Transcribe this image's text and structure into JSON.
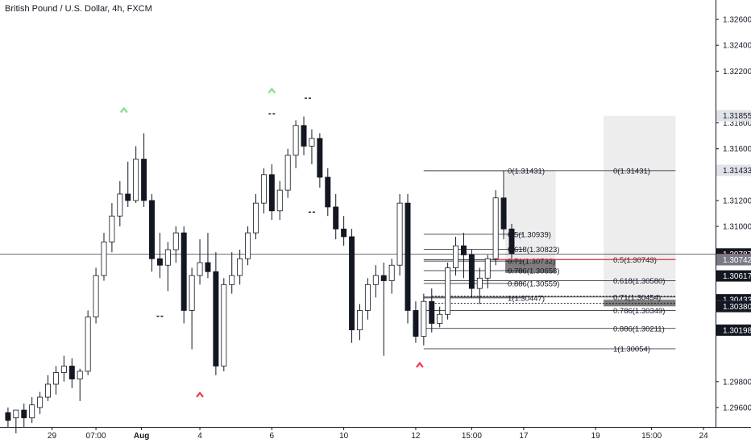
{
  "chart_data": {
    "type": "candlestick",
    "title": "British Pound / U.S. Dollar, 4h, FXCM",
    "ylim": [
      1.2945,
      1.3275
    ],
    "y_ticks": [
      "1.32600",
      "1.32400",
      "1.32200",
      "1.31800",
      "1.31600",
      "1.31200",
      "1.31000",
      "1.29800",
      "1.29600"
    ],
    "x_ticks": [
      {
        "label": "29",
        "x": 6.5
      },
      {
        "label": "07:00",
        "x": 12
      },
      {
        "label": "Aug",
        "x": 17.7
      },
      {
        "label": "4",
        "x": 25
      },
      {
        "label": "6",
        "x": 34
      },
      {
        "label": "10",
        "x": 43
      },
      {
        "label": "12",
        "x": 52
      },
      {
        "label": "15:00",
        "x": 59
      },
      {
        "label": "17",
        "x": 65.5
      },
      {
        "label": "19",
        "x": 74.5
      },
      {
        "label": "15:00",
        "x": 81.5
      },
      {
        "label": "24",
        "x": 88
      }
    ],
    "x_range": [
      0,
      89.5
    ],
    "current_price_line": 1.30787,
    "price_badges": [
      {
        "text": "1.31855",
        "value": 1.31855,
        "bg": "#e1e3ea",
        "fg": "#131722"
      },
      {
        "text": "1.31433",
        "value": 1.31433,
        "bg": "#e1e3ea",
        "fg": "#131722"
      },
      {
        "text": "1.30787",
        "value": 1.30787,
        "bg": "#131722",
        "fg": "#ffffff"
      },
      {
        "text": "1.30744",
        "value": 1.30744,
        "bg": "#f23645",
        "fg": "#ffffff"
      },
      {
        "text": "1.30742",
        "value": 1.30742,
        "bg": "#787b86",
        "fg": "#ffffff"
      },
      {
        "text": "1.30617",
        "value": 1.30617,
        "bg": "#131722",
        "fg": "#ffffff"
      },
      {
        "text": "1.30433",
        "value": 1.30433,
        "bg": "#131722",
        "fg": "#ffffff"
      },
      {
        "text": "1.30382",
        "value": 1.30382,
        "bg": "#787b86",
        "fg": "#ffffff"
      },
      {
        "text": "1.30380",
        "value": 1.3038,
        "bg": "#131722",
        "fg": "#ffffff"
      },
      {
        "text": "1.30198",
        "value": 1.30198,
        "bg": "#131722",
        "fg": "#ffffff"
      }
    ],
    "candles": [
      {
        "x": 1,
        "o": 1.2956,
        "h": 1.296,
        "l": 1.2945,
        "c": 1.295
      },
      {
        "x": 2,
        "o": 1.2952,
        "h": 1.2958,
        "l": 1.294,
        "c": 1.2958
      },
      {
        "x": 3,
        "o": 1.2958,
        "h": 1.2963,
        "l": 1.2945,
        "c": 1.2952
      },
      {
        "x": 4,
        "o": 1.2952,
        "h": 1.2968,
        "l": 1.2948,
        "c": 1.2962
      },
      {
        "x": 5,
        "o": 1.296,
        "h": 1.2972,
        "l": 1.2955,
        "c": 1.2968
      },
      {
        "x": 6,
        "o": 1.2968,
        "h": 1.2985,
        "l": 1.2965,
        "c": 1.2978
      },
      {
        "x": 7,
        "o": 1.2978,
        "h": 1.2992,
        "l": 1.297,
        "c": 1.2987
      },
      {
        "x": 8,
        "o": 1.2987,
        "h": 1.3,
        "l": 1.298,
        "c": 1.2992
      },
      {
        "x": 9,
        "o": 1.2992,
        "h": 1.2998,
        "l": 1.2975,
        "c": 1.2982
      },
      {
        "x": 10,
        "o": 1.2982,
        "h": 1.299,
        "l": 1.2965,
        "c": 1.2988
      },
      {
        "x": 11,
        "o": 1.2988,
        "h": 1.3035,
        "l": 1.2985,
        "c": 1.303
      },
      {
        "x": 12,
        "o": 1.303,
        "h": 1.3068,
        "l": 1.3025,
        "c": 1.3062
      },
      {
        "x": 13,
        "o": 1.3062,
        "h": 1.3095,
        "l": 1.3058,
        "c": 1.3088
      },
      {
        "x": 14,
        "o": 1.3088,
        "h": 1.3118,
        "l": 1.308,
        "c": 1.3108
      },
      {
        "x": 15,
        "o": 1.3108,
        "h": 1.3135,
        "l": 1.31,
        "c": 1.3125
      },
      {
        "x": 16,
        "o": 1.3125,
        "h": 1.315,
        "l": 1.3115,
        "c": 1.312
      },
      {
        "x": 17,
        "o": 1.312,
        "h": 1.3162,
        "l": 1.3118,
        "c": 1.3152
      },
      {
        "x": 18,
        "o": 1.3152,
        "h": 1.3172,
        "l": 1.3115,
        "c": 1.312
      },
      {
        "x": 19,
        "o": 1.312,
        "h": 1.3125,
        "l": 1.3065,
        "c": 1.3075
      },
      {
        "x": 20,
        "o": 1.3075,
        "h": 1.3095,
        "l": 1.306,
        "c": 1.307
      },
      {
        "x": 21,
        "o": 1.307,
        "h": 1.3088,
        "l": 1.305,
        "c": 1.3082
      },
      {
        "x": 22,
        "o": 1.3082,
        "h": 1.31,
        "l": 1.3072,
        "c": 1.3095
      },
      {
        "x": 23,
        "o": 1.3095,
        "h": 1.31,
        "l": 1.3025,
        "c": 1.3035
      },
      {
        "x": 24,
        "o": 1.3035,
        "h": 1.3068,
        "l": 1.3005,
        "c": 1.3062
      },
      {
        "x": 25,
        "o": 1.3062,
        "h": 1.309,
        "l": 1.3055,
        "c": 1.3072
      },
      {
        "x": 26,
        "o": 1.3072,
        "h": 1.3095,
        "l": 1.306,
        "c": 1.3065
      },
      {
        "x": 27,
        "o": 1.3065,
        "h": 1.308,
        "l": 1.2985,
        "c": 1.2992
      },
      {
        "x": 28,
        "o": 1.2992,
        "h": 1.306,
        "l": 1.2988,
        "c": 1.3055
      },
      {
        "x": 29,
        "o": 1.3055,
        "h": 1.308,
        "l": 1.3048,
        "c": 1.3062
      },
      {
        "x": 30,
        "o": 1.3062,
        "h": 1.3082,
        "l": 1.3055,
        "c": 1.3075
      },
      {
        "x": 31,
        "o": 1.3075,
        "h": 1.31,
        "l": 1.307,
        "c": 1.3095
      },
      {
        "x": 32,
        "o": 1.3095,
        "h": 1.3125,
        "l": 1.309,
        "c": 1.3118
      },
      {
        "x": 33,
        "o": 1.3118,
        "h": 1.3145,
        "l": 1.311,
        "c": 1.314
      },
      {
        "x": 34,
        "o": 1.314,
        "h": 1.3148,
        "l": 1.3105,
        "c": 1.3112
      },
      {
        "x": 35,
        "o": 1.3112,
        "h": 1.3135,
        "l": 1.3105,
        "c": 1.3128
      },
      {
        "x": 36,
        "o": 1.3128,
        "h": 1.316,
        "l": 1.3122,
        "c": 1.3155
      },
      {
        "x": 37,
        "o": 1.3155,
        "h": 1.3182,
        "l": 1.3145,
        "c": 1.3178
      },
      {
        "x": 38,
        "o": 1.3178,
        "h": 1.3185,
        "l": 1.3155,
        "c": 1.3162
      },
      {
        "x": 39,
        "o": 1.3162,
        "h": 1.3175,
        "l": 1.3148,
        "c": 1.3168
      },
      {
        "x": 40,
        "o": 1.3168,
        "h": 1.3172,
        "l": 1.313,
        "c": 1.3138
      },
      {
        "x": 41,
        "o": 1.3138,
        "h": 1.3145,
        "l": 1.3108,
        "c": 1.3115
      },
      {
        "x": 42,
        "o": 1.3115,
        "h": 1.3125,
        "l": 1.309,
        "c": 1.3098
      },
      {
        "x": 43,
        "o": 1.3098,
        "h": 1.3108,
        "l": 1.3085,
        "c": 1.3092
      },
      {
        "x": 44,
        "o": 1.3092,
        "h": 1.3098,
        "l": 1.301,
        "c": 1.302
      },
      {
        "x": 45,
        "o": 1.302,
        "h": 1.304,
        "l": 1.3012,
        "c": 1.3035
      },
      {
        "x": 46,
        "o": 1.3035,
        "h": 1.306,
        "l": 1.3028,
        "c": 1.3055
      },
      {
        "x": 47,
        "o": 1.3055,
        "h": 1.307,
        "l": 1.3045,
        "c": 1.3062
      },
      {
        "x": 48,
        "o": 1.3062,
        "h": 1.3072,
        "l": 1.3,
        "c": 1.3058
      },
      {
        "x": 49,
        "o": 1.3058,
        "h": 1.3075,
        "l": 1.3048,
        "c": 1.307
      },
      {
        "x": 50,
        "o": 1.307,
        "h": 1.3125,
        "l": 1.3062,
        "c": 1.3118
      },
      {
        "x": 51,
        "o": 1.3118,
        "h": 1.3125,
        "l": 1.3025,
        "c": 1.3035
      },
      {
        "x": 52,
        "o": 1.3035,
        "h": 1.3042,
        "l": 1.301,
        "c": 1.3015
      },
      {
        "x": 53,
        "o": 1.3015,
        "h": 1.3048,
        "l": 1.3008,
        "c": 1.3042
      },
      {
        "x": 54,
        "o": 1.3042,
        "h": 1.3052,
        "l": 1.3018,
        "c": 1.3025
      },
      {
        "x": 55,
        "o": 1.3025,
        "h": 1.3038,
        "l": 1.3022,
        "c": 1.3032
      },
      {
        "x": 56,
        "o": 1.3032,
        "h": 1.3072,
        "l": 1.3028,
        "c": 1.3068
      },
      {
        "x": 57,
        "o": 1.3068,
        "h": 1.3092,
        "l": 1.3062,
        "c": 1.3085
      },
      {
        "x": 58,
        "o": 1.3085,
        "h": 1.3095,
        "l": 1.306,
        "c": 1.3078
      },
      {
        "x": 59,
        "o": 1.3078,
        "h": 1.3082,
        "l": 1.3045,
        "c": 1.3052
      },
      {
        "x": 60,
        "o": 1.3052,
        "h": 1.3068,
        "l": 1.304,
        "c": 1.306
      },
      {
        "x": 61,
        "o": 1.306,
        "h": 1.3078,
        "l": 1.3052,
        "c": 1.3075
      },
      {
        "x": 62,
        "o": 1.3075,
        "h": 1.3128,
        "l": 1.307,
        "c": 1.3122
      },
      {
        "x": 63,
        "o": 1.3122,
        "h": 1.3143,
        "l": 1.309,
        "c": 1.3098
      },
      {
        "x": 64,
        "o": 1.3098,
        "h": 1.3102,
        "l": 1.3075,
        "c": 1.3079
      }
    ],
    "fib_left": {
      "x1": 53,
      "x2": 65.5,
      "levels": [
        {
          "label": "0(1.31431)",
          "value": 1.31431
        },
        {
          "label": "0.5(1.30939)",
          "value": 1.30939
        },
        {
          "label": "0.618(1.30823)",
          "value": 1.30823
        },
        {
          "label": "0.71(1.30732)",
          "value": 1.30732
        },
        {
          "label": "0.786(1.30658)",
          "value": 1.30658
        },
        {
          "label": "0.886(1.30559)",
          "value": 1.30559
        },
        {
          "label": "1(1.30447)",
          "value": 1.30447
        }
      ]
    },
    "fib_right": {
      "x1": 53,
      "x2": 84.5,
      "levels": [
        {
          "label": "0(1.31431)",
          "value": 1.31431
        },
        {
          "label": "0.5(1.30743)",
          "value": 1.30743
        },
        {
          "label": "0.618(1.30580)",
          "value": 1.3058
        },
        {
          "label": "0.71(1.30454)",
          "value": 1.30454
        },
        {
          "label": "0.786(1.30349)",
          "value": 1.30349
        },
        {
          "label": "0.886(1.30211)",
          "value": 1.30211
        },
        {
          "label": "1(1.30054)",
          "value": 1.30054
        }
      ]
    },
    "position_boxes": [
      {
        "x1": 63.2,
        "x2": 69.5,
        "y1": 1.31431,
        "y2": 1.30744,
        "color": "#ededee"
      },
      {
        "x1": 63.2,
        "x2": 69.5,
        "y1": 1.30744,
        "y2": 1.3064,
        "color": "#7e7e7e"
      },
      {
        "x1": 75.5,
        "x2": 84.5,
        "y1": 1.31855,
        "y2": 1.30433,
        "color": "#ededee"
      },
      {
        "x1": 75.5,
        "x2": 84.5,
        "y1": 1.30433,
        "y2": 1.30382,
        "color": "#7e7e7e"
      }
    ],
    "entry_line": {
      "x1": 62,
      "x2": 84.5,
      "value": 1.30744,
      "color": "#f23645"
    },
    "dotted_lines": [
      {
        "x1": 54,
        "x2": 84.5,
        "value": 1.3046
      },
      {
        "x1": 54,
        "x2": 84.5,
        "value": 1.30405
      }
    ],
    "markers": [
      {
        "x": 15.5,
        "value": 1.319,
        "dir": "up",
        "color": "#7ee38a"
      },
      {
        "x": 34,
        "value": 1.3205,
        "dir": "up",
        "color": "#7ee38a"
      },
      {
        "x": 25,
        "value": 1.297,
        "dir": "up",
        "color": "#f23645"
      },
      {
        "x": 52.5,
        "value": 1.2993,
        "dir": "up",
        "color": "#f23645"
      }
    ],
    "small_dashes": [
      {
        "x": 20,
        "value": 1.30305
      },
      {
        "x": 34,
        "value": 1.3187
      },
      {
        "x": 38.5,
        "value": 1.3199
      },
      {
        "x": 39,
        "value": 1.3111
      }
    ]
  }
}
